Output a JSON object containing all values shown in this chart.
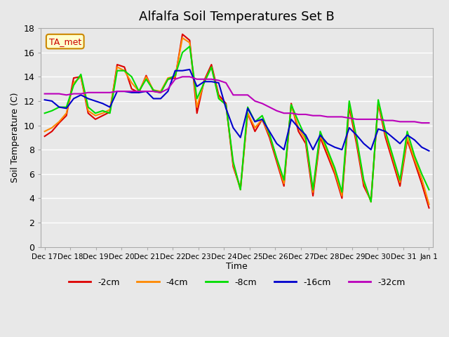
{
  "title": "Alfalfa Soil Temperatures Set B",
  "xlabel": "Time",
  "ylabel": "Soil Temperature (C)",
  "ylim": [
    0,
    18
  ],
  "yticks": [
    0,
    2,
    4,
    6,
    8,
    10,
    12,
    14,
    16,
    18
  ],
  "xtick_labels": [
    "Dec 17",
    "Dec 18",
    "Dec 19",
    "Dec 20",
    "Dec 21",
    "Dec 22",
    "Dec 23",
    "Dec 24",
    "Dec 25",
    "Dec 26",
    "Dec 27",
    "Dec 28",
    "Dec 29",
    "Dec 30",
    "Dec 31",
    "Jan 1"
  ],
  "annotation_text": "TA_met",
  "colors": {
    "-2cm": "#dd0000",
    "-4cm": "#ff8800",
    "-8cm": "#00dd00",
    "-16cm": "#0000cc",
    "-32cm": "#bb00bb"
  },
  "legend_labels": [
    "-2cm",
    "-4cm",
    "-8cm",
    "-16cm",
    "-32cm"
  ],
  "background_color": "#e8e8e8",
  "plot_bg_color": "#e8e8e8",
  "grid_color": "#ffffff",
  "series": {
    "-2cm": [
      9.1,
      9.5,
      10.2,
      10.8,
      13.9,
      14.0,
      11.0,
      10.5,
      10.8,
      11.1,
      15.0,
      14.8,
      13.0,
      12.7,
      14.1,
      12.8,
      12.7,
      13.8,
      13.9,
      17.5,
      17.0,
      11.0,
      13.7,
      15.0,
      12.5,
      11.8,
      6.6,
      4.8,
      11.0,
      9.5,
      10.5,
      9.0,
      7.0,
      5.0,
      11.8,
      9.5,
      8.5,
      4.2,
      9.0,
      7.5,
      6.0,
      4.0,
      11.5,
      8.5,
      5.0,
      3.8,
      11.8,
      9.0,
      7.0,
      5.0,
      8.8,
      7.0,
      5.2,
      3.2
    ],
    "-4cm": [
      9.5,
      9.8,
      10.3,
      11.0,
      13.5,
      14.0,
      11.2,
      10.8,
      11.0,
      11.3,
      14.8,
      14.5,
      13.5,
      12.8,
      14.0,
      12.9,
      12.8,
      13.9,
      14.0,
      17.2,
      16.8,
      11.5,
      13.6,
      14.8,
      12.3,
      11.7,
      6.8,
      4.7,
      11.0,
      9.8,
      10.5,
      9.2,
      7.2,
      5.2,
      11.7,
      9.8,
      8.8,
      4.5,
      9.2,
      7.8,
      6.2,
      4.2,
      11.8,
      8.8,
      5.3,
      3.7,
      11.9,
      9.3,
      7.3,
      5.3,
      9.0,
      7.2,
      5.6,
      3.5
    ],
    "-8cm": [
      11.0,
      11.2,
      11.5,
      11.5,
      13.3,
      14.2,
      11.5,
      11.0,
      11.2,
      11.0,
      14.5,
      14.5,
      14.0,
      12.8,
      13.8,
      12.9,
      12.7,
      13.8,
      14.1,
      16.0,
      16.5,
      12.2,
      13.5,
      14.8,
      12.2,
      11.7,
      7.0,
      4.7,
      11.5,
      10.3,
      10.8,
      9.3,
      7.3,
      5.5,
      11.7,
      10.3,
      9.0,
      4.7,
      9.5,
      8.0,
      6.5,
      4.5,
      12.0,
      9.0,
      5.5,
      3.7,
      12.1,
      9.5,
      7.5,
      5.5,
      9.5,
      7.5,
      6.0,
      4.7
    ],
    "-16cm": [
      12.1,
      12.0,
      11.5,
      11.4,
      12.2,
      12.5,
      12.2,
      12.0,
      11.8,
      11.5,
      12.8,
      12.8,
      12.7,
      12.7,
      12.8,
      12.2,
      12.2,
      12.8,
      14.5,
      14.5,
      14.6,
      13.2,
      13.6,
      13.6,
      13.5,
      11.4,
      9.8,
      9.0,
      11.4,
      10.3,
      10.5,
      9.5,
      8.5,
      8.0,
      10.5,
      9.8,
      9.2,
      8.0,
      9.2,
      8.5,
      8.2,
      8.0,
      9.8,
      9.2,
      8.5,
      8.0,
      9.7,
      9.5,
      9.0,
      8.5,
      9.2,
      8.8,
      8.2,
      7.9
    ],
    "-32cm": [
      12.6,
      12.6,
      12.6,
      12.5,
      12.6,
      12.6,
      12.7,
      12.7,
      12.7,
      12.7,
      12.8,
      12.8,
      12.8,
      12.8,
      12.8,
      12.8,
      12.7,
      13.0,
      13.8,
      14.0,
      14.0,
      13.8,
      13.8,
      13.8,
      13.7,
      13.5,
      12.5,
      12.5,
      12.5,
      12.0,
      11.8,
      11.5,
      11.2,
      11.0,
      11.0,
      10.9,
      10.9,
      10.8,
      10.8,
      10.7,
      10.7,
      10.7,
      10.6,
      10.5,
      10.5,
      10.5,
      10.5,
      10.4,
      10.4,
      10.3,
      10.3,
      10.3,
      10.2,
      10.2
    ]
  },
  "n_points": 54,
  "linewidth": 1.5
}
